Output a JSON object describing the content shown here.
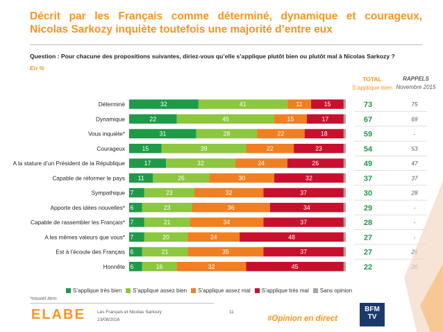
{
  "title": {
    "line1": "Décrit par les Français comme déterminé, dynamique et courageux,",
    "line2": "Nicolas Sarkozy inquiète toutefois une majorité d’entre eux"
  },
  "question": "Question : Pour chacune des propositions suivantes, diriez-vous qu’elle s’applique plutôt bien ou plutôt mal à Nicolas Sarkozy ?",
  "unit": "En %",
  "header": {
    "total_title": "TOTAL",
    "total_subtitle": "S’applique bien",
    "rappels_title": "RAPPELS",
    "rappels_subtitle": "Novembre 2015"
  },
  "footer": {
    "note": "*nouvel item",
    "logo": "ELABE",
    "doc_title": "Les Français et Nicolas Sarkozy",
    "date": "23/08/2016",
    "page": "11",
    "hashtag": "#Opinion en direct",
    "partner": "BFM TV"
  },
  "colors": {
    "accent": "#f7941d",
    "total_green": "#1e9a48",
    "separator": "#bfbfbf"
  },
  "chart_data": {
    "type": "bar",
    "orientation": "horizontal-stacked-100",
    "categories": [
      "Déterminé",
      "Dynamique",
      "Vous inquiète*",
      "Courageux",
      "A la stature d’un Président de la République",
      "Capable de réformer le pays",
      "Sympathique",
      "Apporte des idées nouvelles*",
      "Capable de rassembler les Français*",
      "A les mêmes valeurs que vous*",
      "Est à l’écoute des Français",
      "Honnête"
    ],
    "series": [
      {
        "name": "S’applique très bien",
        "color": "#1e9a48",
        "values": [
          32,
          22,
          31,
          15,
          17,
          11,
          7,
          6,
          7,
          7,
          6,
          6
        ]
      },
      {
        "name": "S’applique assez bien",
        "color": "#8dc63f",
        "values": [
          41,
          45,
          28,
          39,
          32,
          26,
          23,
          23,
          21,
          20,
          21,
          16
        ]
      },
      {
        "name": "S’applique assez mal",
        "color": "#f07f22",
        "values": [
          11,
          15,
          22,
          22,
          24,
          30,
          32,
          36,
          34,
          24,
          35,
          32
        ]
      },
      {
        "name": "S’applique très mal",
        "color": "#c8102e",
        "values": [
          15,
          17,
          18,
          23,
          26,
          32,
          37,
          34,
          37,
          48,
          37,
          45
        ]
      },
      {
        "name": "Sans opinion",
        "color": "#a6a6a6",
        "values": [
          1,
          1,
          1,
          1,
          1,
          1,
          1,
          1,
          1,
          1,
          1,
          1
        ]
      }
    ],
    "total": [
      "73",
      "67",
      "59",
      "54",
      "49",
      "37",
      "30",
      "29",
      "28",
      "27",
      "27",
      "22"
    ],
    "rappels": [
      "75",
      "69",
      "-",
      "53",
      "47",
      "37",
      "28",
      "-",
      "-",
      "-",
      "26",
      "20"
    ],
    "xlim": [
      0,
      100
    ],
    "legend": "bottom"
  }
}
